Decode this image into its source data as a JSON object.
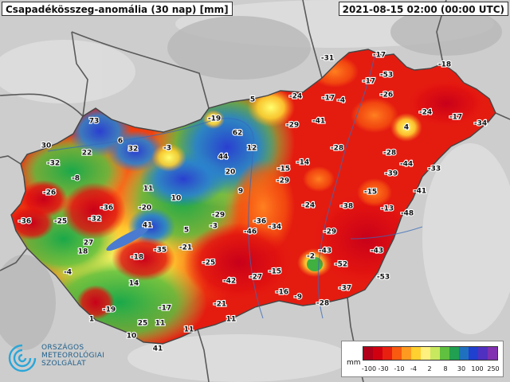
{
  "header": {
    "title": "Csapadékösszeg-anomália (30 nap) [mm]",
    "timestamp": "2021-08-15 02:00 (00:00 UTC)"
  },
  "logo": {
    "line1": "ORSZÁGOS",
    "line2": "METEOROLÓGIAI",
    "line3": "SZOLGÁLAT",
    "color": "#1f6fa0"
  },
  "legend": {
    "unit": "mm",
    "tick_labels": [
      "-100",
      "-30",
      "-10",
      "-4",
      "2",
      "8",
      "30",
      "100",
      "250"
    ],
    "colors": [
      "#b0001a",
      "#d10010",
      "#e82010",
      "#f85a10",
      "#ff9a20",
      "#ffd030",
      "#fff080",
      "#c8e860",
      "#60c040",
      "#20a050",
      "#2070c0",
      "#2040d0",
      "#5030c0",
      "#8030b0"
    ]
  },
  "map": {
    "values": [
      {
        "label": "73"
      },
      {
        "label": "6"
      },
      {
        "label": "32"
      },
      {
        "label": "-3"
      },
      {
        "label": "30"
      },
      {
        "label": "22"
      },
      {
        "label": "-32"
      },
      {
        "label": "-8"
      },
      {
        "label": "-26"
      },
      {
        "label": "11"
      },
      {
        "label": "10"
      },
      {
        "label": "-36"
      },
      {
        "label": "-25"
      },
      {
        "label": "-36"
      },
      {
        "label": "-32"
      },
      {
        "label": "-20"
      },
      {
        "label": "41"
      },
      {
        "label": "27"
      },
      {
        "label": "18"
      },
      {
        "label": "-4"
      },
      {
        "label": "-18"
      },
      {
        "label": "-35"
      },
      {
        "label": "14"
      },
      {
        "label": "-19"
      },
      {
        "label": "-17"
      },
      {
        "label": "1"
      },
      {
        "label": "25"
      },
      {
        "label": "11"
      },
      {
        "label": "10"
      },
      {
        "label": "41"
      },
      {
        "label": "11"
      },
      {
        "label": "5"
      },
      {
        "label": "-19"
      },
      {
        "label": "62"
      },
      {
        "label": "12"
      },
      {
        "label": "44"
      },
      {
        "label": "20"
      },
      {
        "label": "9"
      },
      {
        "label": "-29"
      },
      {
        "label": "5"
      },
      {
        "label": "-3"
      },
      {
        "label": "-21"
      },
      {
        "label": "-25"
      },
      {
        "label": "-21"
      },
      {
        "label": "11"
      },
      {
        "label": "-31"
      },
      {
        "label": "-17"
      },
      {
        "label": "-53"
      },
      {
        "label": "-17"
      },
      {
        "label": "-18"
      },
      {
        "label": "-24"
      },
      {
        "label": "-17"
      },
      {
        "label": "-4"
      },
      {
        "label": "-26"
      },
      {
        "label": "-29"
      },
      {
        "label": "-41"
      },
      {
        "label": "4"
      },
      {
        "label": "-24"
      },
      {
        "label": "-17"
      },
      {
        "label": "-34"
      },
      {
        "label": "-28"
      },
      {
        "label": "-28"
      },
      {
        "label": "-15"
      },
      {
        "label": "-14"
      },
      {
        "label": "-44"
      },
      {
        "label": "-33"
      },
      {
        "label": "-29"
      },
      {
        "label": "-39"
      },
      {
        "label": "-15"
      },
      {
        "label": "-41"
      },
      {
        "label": "-24"
      },
      {
        "label": "-38"
      },
      {
        "label": "-13"
      },
      {
        "label": "-48"
      },
      {
        "label": "-36"
      },
      {
        "label": "-46"
      },
      {
        "label": "-34"
      },
      {
        "label": "-29"
      },
      {
        "label": "-43"
      },
      {
        "label": "-2"
      },
      {
        "label": "-43"
      },
      {
        "label": "-52"
      },
      {
        "label": "-42"
      },
      {
        "label": "-27"
      },
      {
        "label": "-15"
      },
      {
        "label": "-53"
      },
      {
        "label": "-16"
      },
      {
        "label": "-9"
      },
      {
        "label": "-37"
      },
      {
        "label": "-28"
      }
    ]
  }
}
